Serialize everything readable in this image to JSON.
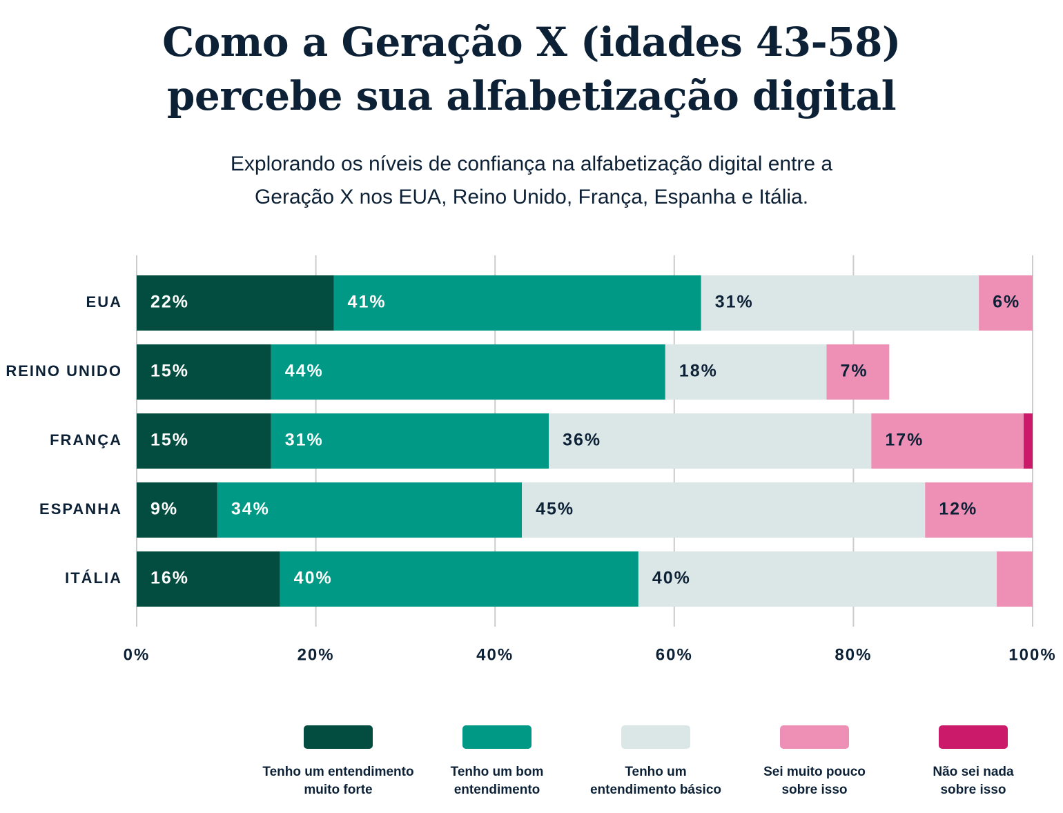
{
  "chart_data": {
    "type": "stacked-barh",
    "title": "Como a Geração X (idades 43-58)\npercebe sua alfabetização digital",
    "subtitle": "Explorando os níveis de confiança na alfabetização digital entre a\nGeração X nos EUA, Reino Unido, França, Espanha e Itália.",
    "categories": [
      "EUA",
      "REINO UNIDO",
      "FRANÇA",
      "ESPANHA",
      "ITÁLIA"
    ],
    "series": [
      {
        "name": "Tenho um entendimento\nmuito forte",
        "color": "#024d40",
        "label_color": "#ffffff",
        "values": [
          22,
          15,
          15,
          9,
          16
        ],
        "value_labels": [
          "22%",
          "15%",
          "15%",
          "9%",
          "16%"
        ]
      },
      {
        "name": "Tenho um bom\nentendimento",
        "color": "#009985",
        "label_color": "#ffffff",
        "values": [
          41,
          44,
          31,
          34,
          40
        ],
        "value_labels": [
          "41%",
          "44%",
          "31%",
          "34%",
          "40%"
        ]
      },
      {
        "name": "Tenho um\nentendimento básico",
        "color": "#dbe7e6",
        "label_color": "#0d2136",
        "values": [
          31,
          18,
          36,
          45,
          40
        ],
        "value_labels": [
          "31%",
          "18%",
          "36%",
          "45%",
          "40%"
        ]
      },
      {
        "name": "Sei muito pouco\nsobre isso",
        "color": "#ee8fb5",
        "label_color": "#0d2136",
        "values": [
          6,
          7,
          17,
          12,
          4
        ],
        "value_labels": [
          "6%",
          "7%",
          "17%",
          "12%",
          null
        ]
      },
      {
        "name": "Não sei nada\nsobre isso",
        "color": "#cc1a6b",
        "label_color": "#ffffff",
        "values": [
          null,
          null,
          1,
          null,
          null
        ],
        "value_labels": [
          null,
          null,
          null,
          null,
          null
        ]
      }
    ],
    "xlim": [
      0,
      100
    ],
    "xticks": [
      {
        "value": 0,
        "label": "0%"
      },
      {
        "value": 20,
        "label": "20%"
      },
      {
        "value": 40,
        "label": "40%"
      },
      {
        "value": 60,
        "label": "60%"
      },
      {
        "value": 80,
        "label": "80%"
      },
      {
        "value": 100,
        "label": "100%"
      }
    ],
    "grid": true
  }
}
